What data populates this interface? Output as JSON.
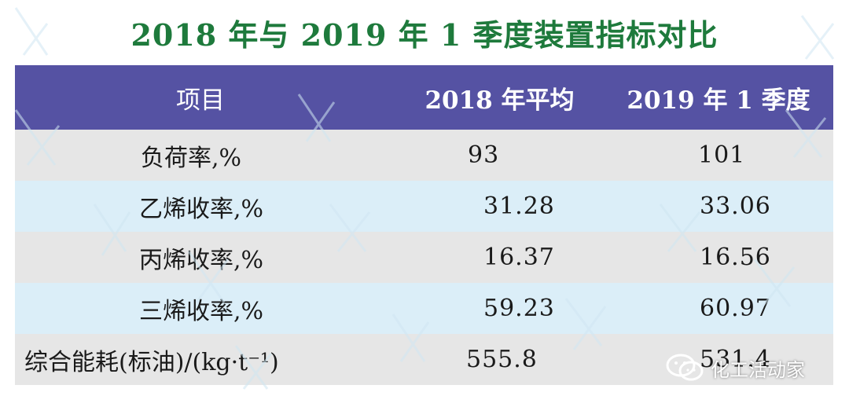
{
  "title": "2018 年与 2019 年 1 季度装置指标对比",
  "colors": {
    "title_green": "#1e7a3c",
    "header_purple": "#5552a3",
    "row_gray": "#e6e6e6",
    "row_blue": "#dbeef8"
  },
  "table": {
    "headers": [
      "项目",
      "2018 年平均",
      "2019 年 1 季度"
    ],
    "rows": [
      {
        "item": "负荷率,%",
        "y2018": "93",
        "y2019": "101"
      },
      {
        "item": "乙烯收率,%",
        "y2018": "31.28",
        "y2019": "33.06"
      },
      {
        "item": "丙烯收率,%",
        "y2018": "16.37",
        "y2019": "16.56"
      },
      {
        "item": "三烯收率,%",
        "y2018": "59.23",
        "y2019": "60.97"
      },
      {
        "item": "综合能耗(标油)/(kg·t⁻¹)",
        "y2018": "555.8",
        "y2019": "531.4"
      }
    ]
  },
  "watermark": {
    "text": "化工活动家",
    "icon": "wechat-icon"
  }
}
